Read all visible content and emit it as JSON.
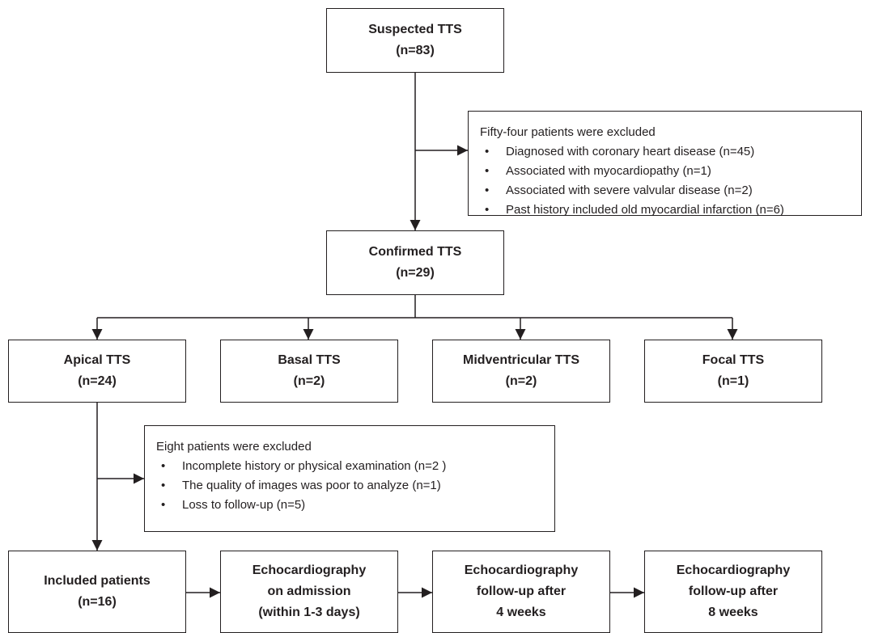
{
  "suspected": {
    "title": "Suspected TTS",
    "count": "(n=83)"
  },
  "exclusion1": {
    "heading": "Fifty-four patients were excluded",
    "items": [
      "Diagnosed with coronary heart disease (n=45)",
      "Associated with myocardiopathy (n=1)",
      "Associated with severe valvular disease (n=2)",
      "Past history included old myocardial infarction (n=6)"
    ]
  },
  "confirmed": {
    "title": "Confirmed TTS",
    "count": "(n=29)"
  },
  "subtypes": [
    {
      "title": "Apical TTS",
      "count": "(n=24)"
    },
    {
      "title": "Basal TTS",
      "count": "(n=2)"
    },
    {
      "title": "Midventricular TTS",
      "count": "(n=2)"
    },
    {
      "title": "Focal TTS",
      "count": "(n=1)"
    }
  ],
  "exclusion2": {
    "heading": "Eight patients were excluded",
    "items": [
      "Incomplete history or physical examination (n=2 )",
      "The quality of images was poor to analyze (n=1)",
      "Loss to follow-up (n=5)"
    ]
  },
  "included": {
    "title": "Included patients",
    "count": "(n=16)"
  },
  "echo_steps": [
    {
      "line1": "Echocardiography",
      "line2": "on admission",
      "line3": "(within 1-3 days)"
    },
    {
      "line1": "Echocardiography",
      "line2": "follow-up after",
      "line3": "4 weeks"
    },
    {
      "line1": "Echocardiography",
      "line2": "follow-up after",
      "line3": "8 weeks"
    }
  ]
}
